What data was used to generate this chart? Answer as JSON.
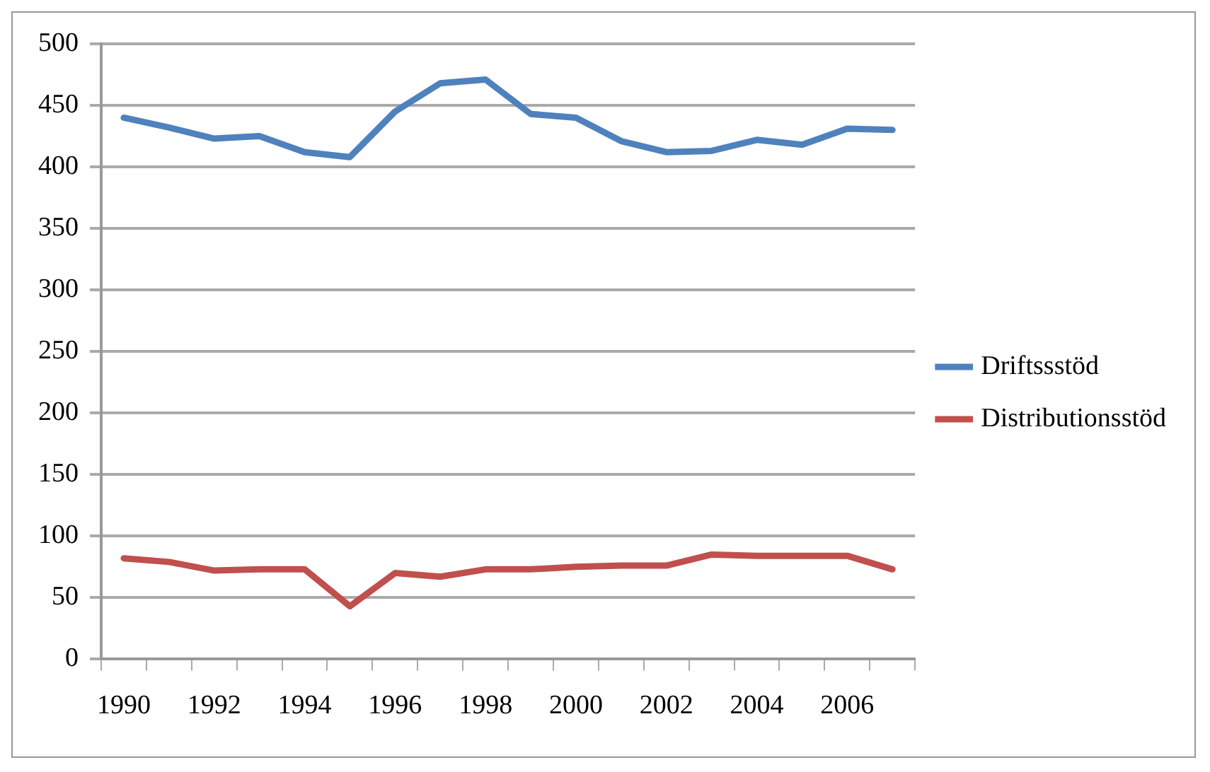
{
  "chart_data": {
    "type": "line",
    "categories": [
      "1990",
      null,
      "1992",
      null,
      "1994",
      null,
      "1996",
      null,
      "1998",
      null,
      "2000",
      null,
      "2002",
      null,
      "2004",
      null,
      "2006",
      null
    ],
    "series": [
      {
        "name": "Driftssstöd",
        "color": "#4f81bd",
        "values": [
          440,
          432,
          423,
          425,
          412,
          408,
          445,
          468,
          471,
          443,
          440,
          421,
          412,
          413,
          422,
          418,
          431,
          430
        ]
      },
      {
        "name": "Distributionsstöd",
        "color": "#c0504d",
        "values": [
          82,
          79,
          72,
          73,
          73,
          43,
          70,
          67,
          73,
          73,
          75,
          76,
          76,
          85,
          84,
          84,
          84,
          73
        ]
      }
    ],
    "ylim": [
      0,
      500
    ],
    "yticks": [
      0,
      50,
      100,
      150,
      200,
      250,
      300,
      350,
      400,
      450,
      500
    ],
    "grid": "y",
    "legend": "right",
    "marker": "none",
    "line_style": "solid"
  }
}
